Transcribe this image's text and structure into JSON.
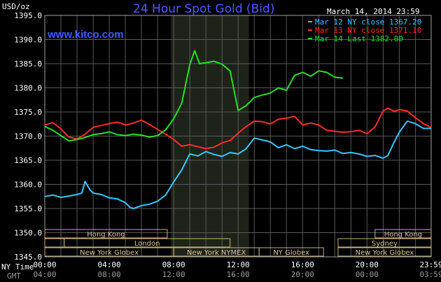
{
  "chart_data": {
    "type": "line",
    "title": "24 Hour Spot Gold (Bid)",
    "brand": "www.kitco.com",
    "date_label": "March 14, 2014 23:59",
    "y_unit": "USD/oz",
    "ylim": [
      1345,
      1395
    ],
    "y_ticks": [
      "1395.0",
      "1390.0",
      "1385.0",
      "1380.0",
      "1375.0",
      "1370.0",
      "1365.0",
      "1360.0",
      "1355.0",
      "1350.0",
      "1345.0"
    ],
    "x_tick_values": [
      0,
      4,
      8,
      12,
      16,
      20,
      23.983
    ],
    "x_tick_labels_ny": [
      "00:00",
      "04:00",
      "08:00",
      "12:00",
      "16:00",
      "20:00",
      "23:59"
    ],
    "x_tick_labels_gmt": [
      "04:00",
      "08:00",
      "12:00",
      "16:00",
      "20:00",
      "00:00",
      "03:59"
    ],
    "x_row_label_ny": "NY Time",
    "x_row_label_gmt": "GMT",
    "highlight_range_hours": [
      7.83,
      12.67
    ],
    "grid": true,
    "legend_position": "top-right",
    "series": [
      {
        "name": "Mar 12 NY close 1367.20",
        "color": "#33c9ff",
        "x": [
          0,
          0.5,
          1,
          1.5,
          2,
          2.3,
          2.5,
          2.8,
          3,
          3.5,
          4,
          4.5,
          5,
          5.3,
          5.5,
          6,
          6.5,
          7,
          7.5,
          8,
          8.5,
          9,
          9.5,
          10,
          10.5,
          11,
          11.5,
          12,
          12.5,
          13,
          13.5,
          14,
          14.5,
          15,
          15.5,
          16,
          16.5,
          17,
          17.5,
          18,
          18.5,
          19,
          19.5,
          20,
          20.5,
          21,
          21.3,
          21.6,
          22,
          22.5,
          23,
          23.5,
          23.98
        ],
        "values": [
          1357.5,
          1357.8,
          1357.3,
          1357.6,
          1357.9,
          1358.2,
          1360.6,
          1358.9,
          1358.2,
          1357.9,
          1357.2,
          1357.0,
          1356.2,
          1355.2,
          1355.0,
          1355.6,
          1355.9,
          1356.5,
          1357.8,
          1360.5,
          1363.0,
          1366.3,
          1365.9,
          1366.8,
          1366.2,
          1365.8,
          1366.6,
          1366.3,
          1367.4,
          1369.6,
          1369.2,
          1368.8,
          1367.6,
          1368.2,
          1367.4,
          1367.9,
          1367.2,
          1367.0,
          1366.9,
          1367.1,
          1366.4,
          1366.6,
          1366.3,
          1365.8,
          1366.0,
          1365.4,
          1366.0,
          1368.2,
          1370.8,
          1373.1,
          1372.6,
          1371.6,
          1371.6
        ]
      },
      {
        "name": "Mar 13 NY close 1371.10",
        "color": "#ff2a2a",
        "x": [
          0,
          0.5,
          1,
          1.5,
          2,
          2.5,
          3,
          3.5,
          4,
          4.5,
          5,
          5.5,
          6,
          6.5,
          7,
          7.5,
          8,
          8.5,
          9,
          9.5,
          10,
          10.5,
          11,
          11.5,
          12,
          12.5,
          13,
          13.5,
          14,
          14.5,
          15,
          15.5,
          16,
          16.5,
          17,
          17.5,
          18,
          18.5,
          19,
          19.5,
          20,
          20.5,
          21,
          21.3,
          21.7,
          22,
          22.5,
          23,
          23.5,
          23.98
        ],
        "values": [
          1372.3,
          1372.8,
          1371.5,
          1369.8,
          1369.4,
          1370.4,
          1371.8,
          1372.2,
          1372.6,
          1372.9,
          1372.3,
          1372.7,
          1373.3,
          1372.4,
          1371.4,
          1370.4,
          1369.3,
          1367.9,
          1368.2,
          1367.8,
          1367.4,
          1367.7,
          1368.6,
          1369.1,
          1370.6,
          1372.0,
          1373.1,
          1373.0,
          1372.5,
          1373.5,
          1373.7,
          1374.1,
          1372.3,
          1372.7,
          1372.3,
          1371.2,
          1371.0,
          1370.8,
          1370.9,
          1371.2,
          1370.5,
          1371.9,
          1375.2,
          1375.8,
          1375.1,
          1375.5,
          1375.2,
          1373.8,
          1372.6,
          1371.8
        ]
      },
      {
        "name": "Mar 14 Last 1382.00",
        "color": "#22e02a",
        "x": [
          0,
          0.5,
          1,
          1.5,
          2,
          2.5,
          3,
          3.5,
          4,
          4.5,
          5,
          5.5,
          6,
          6.5,
          7,
          7.5,
          8,
          8.5,
          9,
          9.3,
          9.6,
          10,
          10.5,
          11,
          11.5,
          12,
          12.5,
          13,
          13.5,
          14,
          14.5,
          15,
          15.5,
          16,
          16.5,
          17,
          17.5,
          18,
          18.5
        ],
        "values": [
          1372.0,
          1371.2,
          1370.1,
          1369.0,
          1369.3,
          1369.7,
          1370.3,
          1370.5,
          1370.9,
          1370.3,
          1370.1,
          1370.4,
          1370.2,
          1369.8,
          1370.1,
          1371.3,
          1373.6,
          1376.8,
          1384.8,
          1387.7,
          1385.0,
          1385.2,
          1385.5,
          1384.9,
          1383.5,
          1375.3,
          1376.3,
          1378.0,
          1378.5,
          1378.9,
          1380.0,
          1379.5,
          1382.6,
          1383.2,
          1382.4,
          1383.5,
          1383.2,
          1382.2,
          1382.0
        ]
      }
    ],
    "sessions": [
      {
        "row": 1,
        "label": "Hong Kong",
        "start": 0,
        "end": 7.6
      },
      {
        "row": 1,
        "label": "Hong Kong",
        "start": 20.5,
        "end": 23.98
      },
      {
        "row": 2,
        "label": "",
        "start": 0,
        "end": 1.2
      },
      {
        "row": 2,
        "label": "London",
        "start": 1.2,
        "end": 11.5
      },
      {
        "row": 2,
        "label": "Sydney",
        "start": 18.2,
        "end": 23.98
      },
      {
        "row": 3,
        "label": "New York Globex",
        "start": 0,
        "end": 8.0
      },
      {
        "row": 3,
        "label": "New York NYMEX",
        "start": 8.0,
        "end": 13.3
      },
      {
        "row": 3,
        "label": "NY Globex",
        "start": 13.3,
        "end": 17.3
      },
      {
        "row": 3,
        "label": "New York Globex",
        "start": 18.2,
        "end": 23.98
      }
    ]
  }
}
